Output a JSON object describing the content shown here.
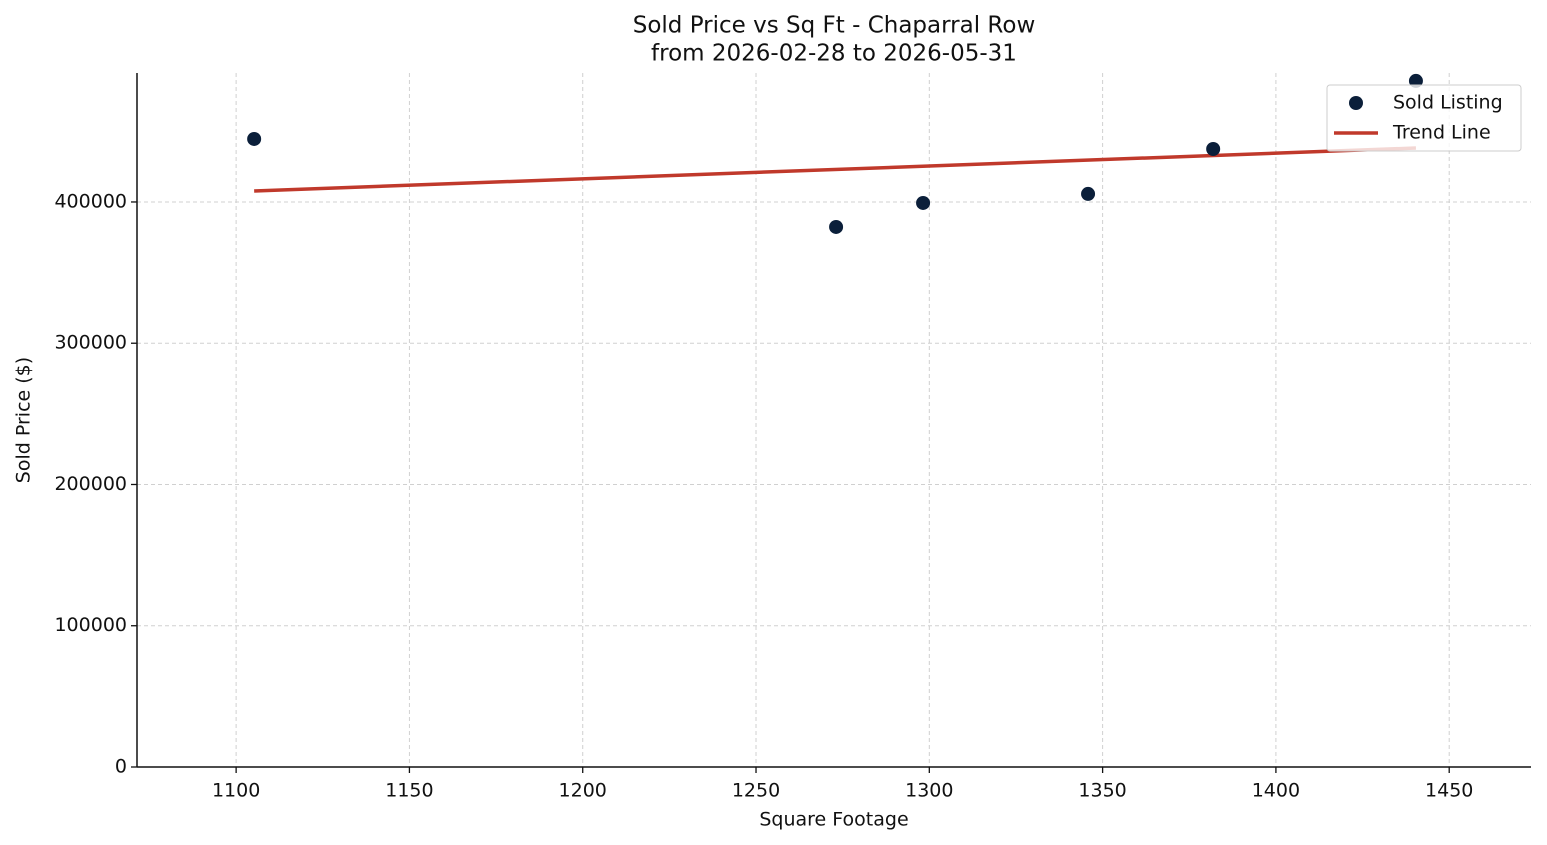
{
  "chart_data": {
    "type": "scatter",
    "title": "Sold Price vs Sq Ft - Chaparral Row",
    "subtitle": "from 2026-02-28 to 2026-05-31",
    "x_label": "Square Footage",
    "y_label": "Sold Price ($)",
    "series": [
      {
        "name": "Sold Listing",
        "color": "#0b1f3a",
        "type": "scatter",
        "x": [
          1105.2,
          1273.1,
          1298.2,
          1345.8,
          1381.9,
          1440.4
        ],
        "values": [
          444600,
          382300,
          399300,
          405700,
          437500,
          485700
        ]
      },
      {
        "name": "Trend Line",
        "color": "#c0392b",
        "type": "line",
        "x": [
          1105.2,
          1440.4
        ],
        "values": [
          407800,
          438200
        ]
      }
    ],
    "xlim": [
      1071.4,
      1473.6
    ],
    "ylim": [
      0,
      491300
    ],
    "xticks": [
      1100,
      1150,
      1200,
      1250,
      1300,
      1350,
      1400,
      1450
    ],
    "yticks": [
      0,
      100000,
      200000,
      300000,
      400000
    ],
    "grid": true,
    "legend": "upper right"
  }
}
